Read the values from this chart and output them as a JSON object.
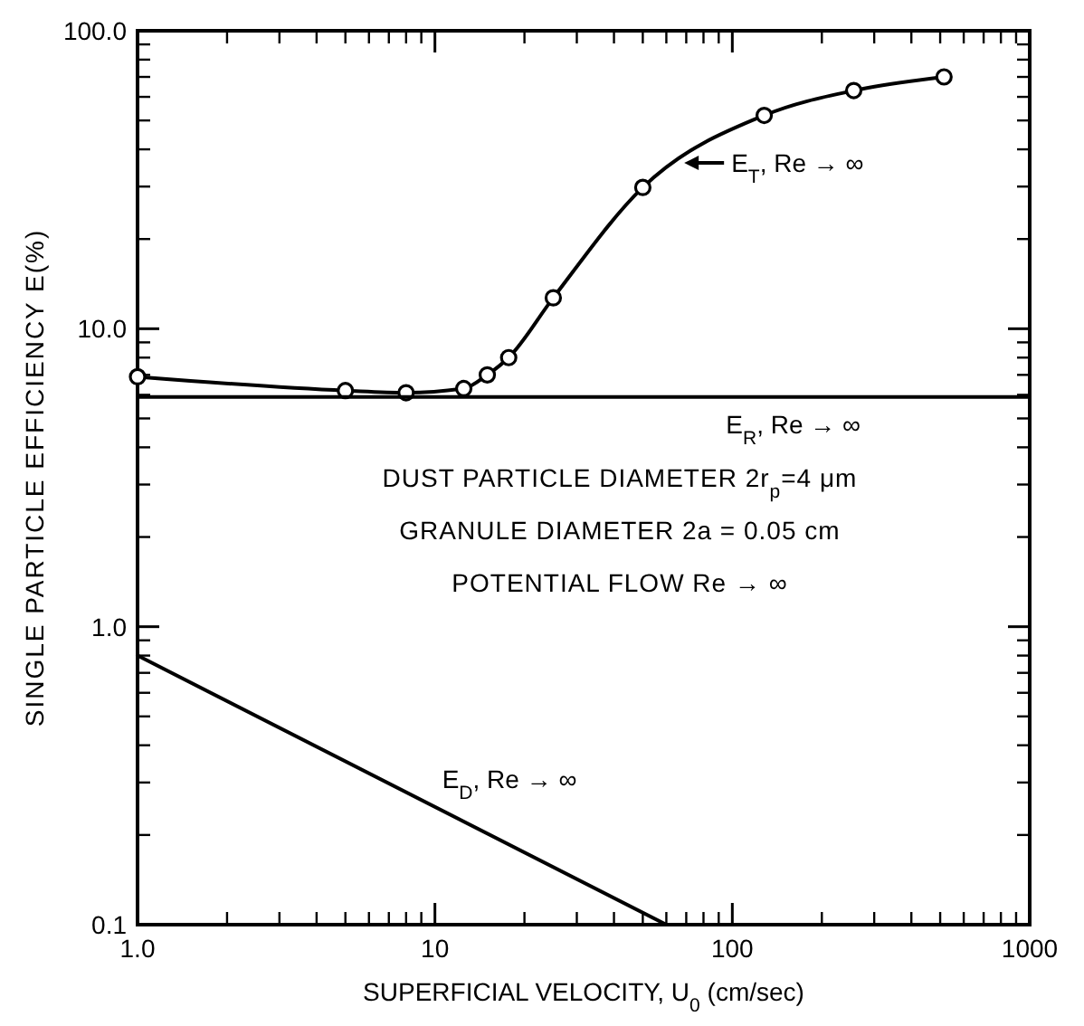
{
  "chart_data": {
    "type": "line",
    "xlabel": "SUPERFICIAL VELOCITY, U$_{0}$ (cm/sec)",
    "ylabel": "SINGLE PARTICLE EFFICIENCY E(%)",
    "log": "xy",
    "xlim": [
      1,
      1000
    ],
    "xticks": [
      {
        "value": 1,
        "label": "1.0"
      },
      10,
      100,
      1000
    ],
    "ylim": [
      0.1,
      100
    ],
    "yticks": [
      {
        "value": 0.1,
        "label": "0.1"
      },
      {
        "value": 1,
        "label": "1.0"
      },
      {
        "value": 10,
        "label": "10.0"
      },
      {
        "value": 100,
        "label": "100.0"
      }
    ],
    "grid": false,
    "line_style": "solid",
    "series": [
      {
        "color": "#000000",
        "marker": "circle",
        "x": [
          1,
          5,
          8,
          12.5,
          15,
          17.7,
          25,
          50,
          128,
          256,
          515
        ],
        "values": [
          6.9,
          6.2,
          6.1,
          6.3,
          7.0,
          8.0,
          12.7,
          29.8,
          52,
          63,
          70
        ]
      },
      {
        "color": "#000000",
        "marker": "none",
        "x": [
          1,
          1000
        ],
        "values": [
          5.9,
          5.9
        ]
      },
      {
        "color": "#000000",
        "marker": "none",
        "x": [
          1,
          60
        ],
        "values": [
          0.8,
          0.1
        ]
      }
    ],
    "annotations": [
      {
        "text": "E$_{T}$, Re → ∞",
        "x": 67,
        "y": 36
      },
      {
        "text": "E$_{R}$, Re → ∞",
        "x": 90,
        "y": 5.9
      },
      {
        "text": "E$_{D}$, Re → ∞",
        "x": 10,
        "y": 0.25
      },
      "DUST PARTICLE DIAMETER 2r$_{p}$=4 μm",
      "GRANULE DIAMETER 2a = 0.05 cm",
      "POTENTIAL FLOW Re → ∞"
    ]
  }
}
